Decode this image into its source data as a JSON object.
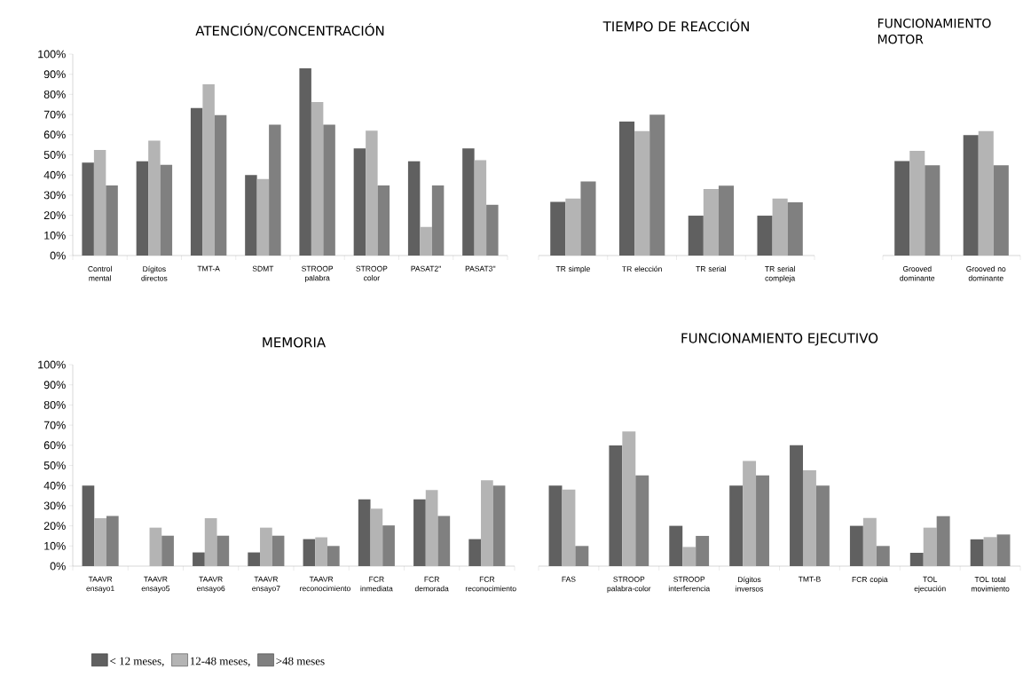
{
  "chart_data": [
    {
      "type": "bar",
      "title": "ATENCIÓN/CONCENTRACIÓN",
      "categories": [
        "Control mental",
        "Dígitos directos",
        "TMT-A",
        "SDMT",
        "STROOP palabra",
        "STROOP color",
        "PASAT2''",
        "PASAT3''"
      ],
      "series": [
        {
          "color": "#606060",
          "values": [
            46.1,
            46.8,
            73.2,
            40,
            93,
            53.2,
            46.8,
            53.2
          ]
        },
        {
          "color": "#b4b4b4",
          "values": [
            52.4,
            57.1,
            85,
            38,
            76.2,
            62,
            14.2,
            47.4
          ]
        },
        {
          "color": "#808080",
          "values": [
            34.8,
            45,
            69.7,
            65,
            65,
            34.8,
            34.8,
            25.2
          ]
        }
      ],
      "ylim": [
        0,
        100
      ],
      "yticks": [
        {
          "value": 0,
          "label": "0%"
        },
        {
          "value": 10,
          "label": "10%"
        },
        {
          "value": 20,
          "label": "20%"
        },
        {
          "value": 30,
          "label": "30%"
        },
        {
          "value": 40,
          "label": "40%"
        },
        {
          "value": 50,
          "label": "50%"
        },
        {
          "value": 60,
          "label": "60%"
        },
        {
          "value": 70,
          "label": "70%"
        },
        {
          "value": 80,
          "label": "80%"
        },
        {
          "value": 90,
          "label": "90%"
        },
        {
          "value": 100,
          "label": "100%"
        }
      ]
    },
    {
      "type": "bar",
      "title": "TIEMPO DE REACCIÓN",
      "categories": [
        "TR simple",
        "TR elección",
        "TR serial",
        "TR serial compleja"
      ],
      "series": [
        {
          "color": "#606060",
          "values": [
            26.7,
            66.5,
            19.8,
            19.8
          ]
        },
        {
          "color": "#b4b4b4",
          "values": [
            28.3,
            61.8,
            33,
            28.3
          ]
        },
        {
          "color": "#808080",
          "values": [
            36.8,
            69.9,
            34.7,
            26.4
          ]
        }
      ],
      "ylim": [
        0,
        100
      ],
      "tick_labels": "x"
    },
    {
      "type": "bar",
      "title": "FUNCIONAMIENTO MOTOR",
      "categories": [
        "Grooved dominante",
        "Grooved no dominante"
      ],
      "series": [
        {
          "color": "#606060",
          "values": [
            46.9,
            59.8
          ]
        },
        {
          "color": "#b4b4b4",
          "values": [
            52,
            61.8
          ]
        },
        {
          "color": "#808080",
          "values": [
            44.8,
            44.8
          ]
        }
      ],
      "ylim": [
        0,
        100
      ],
      "tick_labels": "x"
    },
    {
      "type": "bar",
      "title": "MEMORIA",
      "categories": [
        "TAAVR ensayo1",
        "TAAVR ensayo5",
        "TAAVR ensayo6",
        "TAAVR ensayo7",
        "TAAVR reconocimiento",
        "FCR inmediata",
        "FCR demorada",
        "FCR reconocimiento"
      ],
      "series": [
        {
          "name": "<  12 meses,",
          "color": "#606060",
          "values": [
            40,
            0,
            6.8,
            6.8,
            13.4,
            33.2,
            33.2,
            13.4
          ]
        },
        {
          "name": "12-48 meses,",
          "color": "#b4b4b4",
          "values": [
            23.8,
            19.1,
            23.8,
            19.1,
            14.3,
            28.5,
            37.8,
            42.6
          ]
        },
        {
          "name": ">48 meses",
          "color": "#808080",
          "values": [
            24.9,
            15.1,
            15.1,
            15.1,
            10,
            20.2,
            24.9,
            40
          ]
        }
      ],
      "ylim": [
        0,
        100
      ],
      "yticks": [
        {
          "value": 0,
          "label": "0%"
        },
        {
          "value": 10,
          "label": "10%"
        },
        {
          "value": 20,
          "label": "20%"
        },
        {
          "value": 30,
          "label": "30%"
        },
        {
          "value": 40,
          "label": "40%"
        },
        {
          "value": 50,
          "label": "50%"
        },
        {
          "value": 60,
          "label": "60%"
        },
        {
          "value": 70,
          "label": "70%"
        },
        {
          "value": 80,
          "label": "80%"
        },
        {
          "value": 90,
          "label": "90%"
        },
        {
          "value": 100,
          "label": "100%"
        }
      ],
      "legend": "bottom"
    },
    {
      "type": "bar",
      "title": "FUNCIONAMIENTO EJECUTIVO",
      "categories": [
        "FAS",
        "STROOP palabra-color",
        "STROOP interferencia",
        "Dígitos inversos",
        "TMT-B",
        "FCR copia",
        "TOL ejecución",
        "TOL total movimiento"
      ],
      "series": [
        {
          "color": "#606060",
          "values": [
            40,
            59.9,
            20,
            40,
            60,
            20,
            6.6,
            13.3
          ]
        },
        {
          "color": "#b4b4b4",
          "values": [
            38,
            66.8,
            9.5,
            52.2,
            47.6,
            23.9,
            19.1,
            14.4
          ]
        },
        {
          "color": "#808080",
          "values": [
            10,
            45,
            15,
            45,
            40,
            10,
            24.8,
            15.7
          ]
        }
      ],
      "ylim": [
        0,
        100
      ],
      "tick_labels": "x"
    }
  ]
}
